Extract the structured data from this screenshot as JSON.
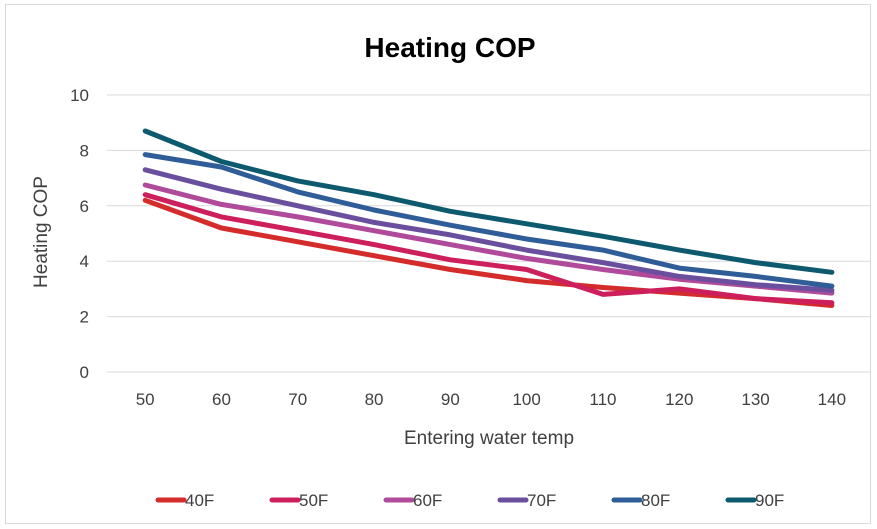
{
  "chart_data": {
    "type": "line",
    "title": "Heating COP",
    "xlabel": "Entering water temp",
    "ylabel": "Heating COP",
    "categories": [
      "50",
      "60",
      "70",
      "80",
      "90",
      "100",
      "110",
      "120",
      "130",
      "140"
    ],
    "ylim": [
      0,
      10
    ],
    "yticks": [
      0,
      2,
      4,
      6,
      8,
      10
    ],
    "grid": true,
    "legend_position": "bottom",
    "series": [
      {
        "name": "40F",
        "color": "#d42b2b",
        "values": [
          6.2,
          5.2,
          4.7,
          4.2,
          3.7,
          3.3,
          3.05,
          2.85,
          2.65,
          2.4
        ]
      },
      {
        "name": "50F",
        "color": "#cc1f5c",
        "values": [
          6.4,
          5.6,
          5.1,
          4.6,
          4.05,
          3.7,
          2.8,
          3.0,
          2.65,
          2.5
        ]
      },
      {
        "name": "60F",
        "color": "#b04a9b",
        "values": [
          6.75,
          6.05,
          5.6,
          5.1,
          4.6,
          4.1,
          3.7,
          3.35,
          3.1,
          2.85
        ]
      },
      {
        "name": "70F",
        "color": "#6a4f9e",
        "values": [
          7.3,
          6.6,
          6.0,
          5.4,
          4.95,
          4.4,
          3.95,
          3.45,
          3.15,
          2.95
        ]
      },
      {
        "name": "80F",
        "color": "#2f5d97",
        "values": [
          7.85,
          7.4,
          6.5,
          5.85,
          5.3,
          4.8,
          4.4,
          3.75,
          3.45,
          3.1
        ]
      },
      {
        "name": "90F",
        "color": "#0d5a6e",
        "values": [
          8.7,
          7.6,
          6.9,
          6.4,
          5.8,
          5.35,
          4.9,
          4.4,
          3.95,
          3.6
        ]
      }
    ]
  }
}
